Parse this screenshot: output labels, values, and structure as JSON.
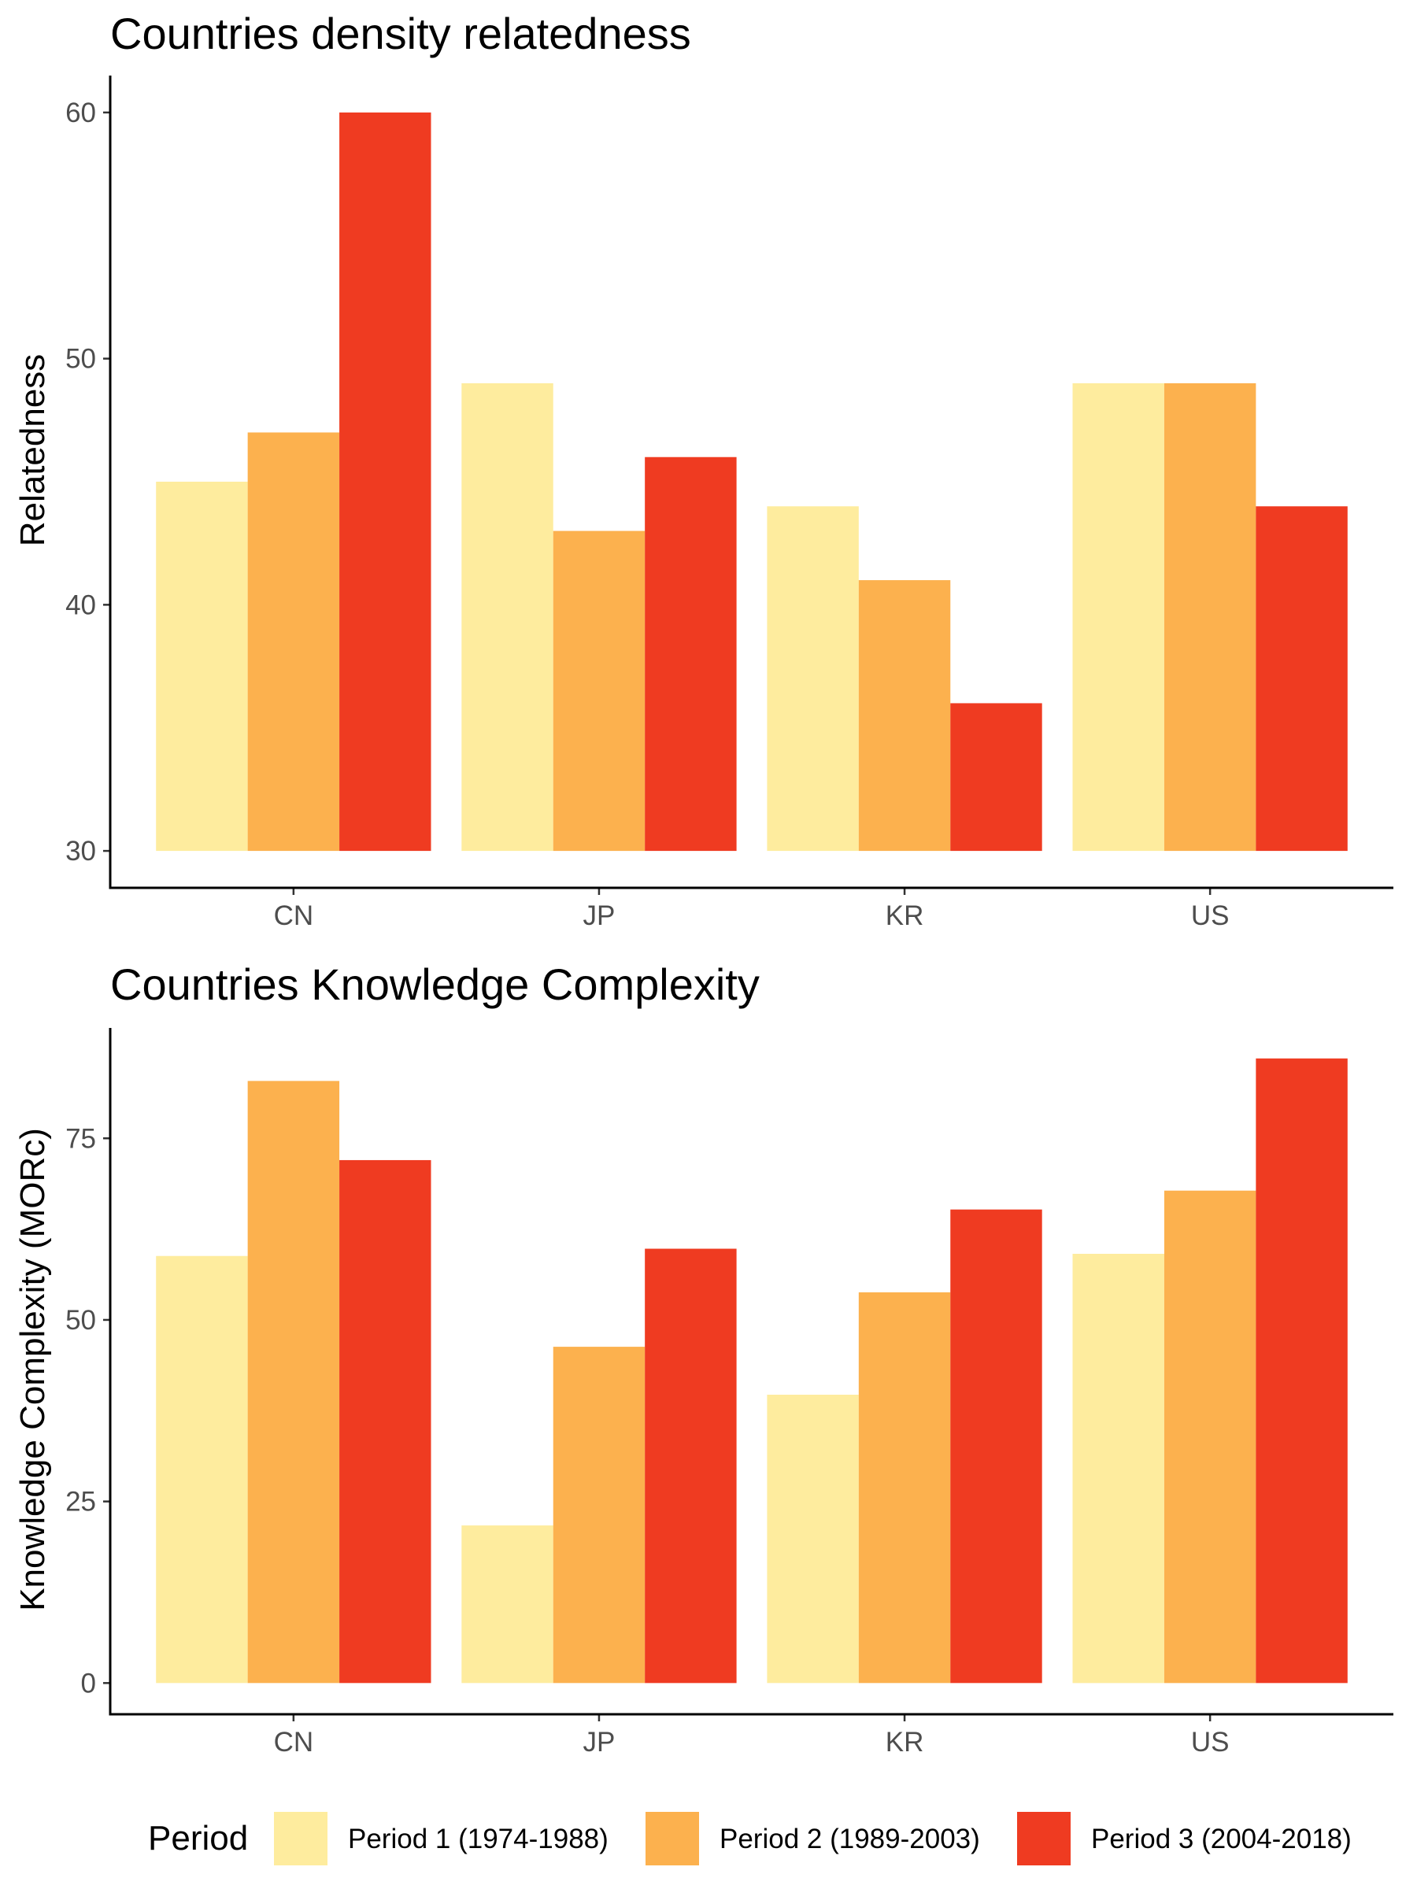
{
  "legend": {
    "title": "Period",
    "entries": [
      {
        "label": "Period 1 (1974-1988)",
        "color": "#FEEC9E"
      },
      {
        "label": "Period 2 (1989-2003)",
        "color": "#FCB14E"
      },
      {
        "label": "Period 3 (2004-2018)",
        "color": "#EF3B21"
      }
    ]
  },
  "chart_data": [
    {
      "type": "bar",
      "title": "Countries density relatedness",
      "xlabel": "",
      "ylabel": "Relatedness",
      "categories": [
        "CN",
        "JP",
        "KR",
        "US"
      ],
      "ylim": [
        28.5,
        61.5
      ],
      "yticks": [
        30,
        40,
        50,
        60
      ],
      "baseline": 30,
      "grid": false,
      "legend_position": "bottom",
      "series": [
        {
          "name": "Period 1 (1974-1988)",
          "values": [
            45,
            49,
            44,
            49
          ]
        },
        {
          "name": "Period 2 (1989-2003)",
          "values": [
            47,
            43,
            41,
            49
          ]
        },
        {
          "name": "Period 3 (2004-2018)",
          "values": [
            60,
            46,
            36,
            44
          ]
        }
      ]
    },
    {
      "type": "bar",
      "title": "Countries Knowledge Complexity",
      "xlabel": "",
      "ylabel": "Knowledge Complexity (MORc)",
      "categories": [
        "CN",
        "JP",
        "KR",
        "US"
      ],
      "ylim": [
        -4.3,
        90.2
      ],
      "yticks": [
        0,
        25,
        50,
        75
      ],
      "baseline": 0,
      "grid": false,
      "legend_position": "bottom",
      "series": [
        {
          "name": "Period 1 (1974-1988)",
          "values": [
            58.8,
            21.7,
            39.7,
            59.1
          ]
        },
        {
          "name": "Period 2 (1989-2003)",
          "values": [
            82.9,
            46.3,
            53.8,
            67.8
          ]
        },
        {
          "name": "Period 3 (2004-2018)",
          "values": [
            72.0,
            59.8,
            65.2,
            86.0
          ]
        }
      ]
    }
  ]
}
